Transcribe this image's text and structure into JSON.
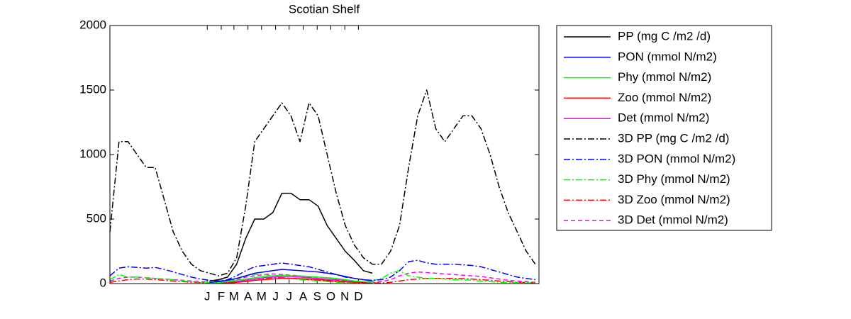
{
  "chart_data": {
    "type": "line",
    "title": "Scotian Shelf",
    "xlim": [
      -215,
      733
    ],
    "xticks": [
      {
        "value": 0,
        "label": "J"
      },
      {
        "value": 31,
        "label": "F"
      },
      {
        "value": 59,
        "label": "M"
      },
      {
        "value": 90,
        "label": "A"
      },
      {
        "value": 120,
        "label": "M"
      },
      {
        "value": 151,
        "label": "J"
      },
      {
        "value": 181,
        "label": "J"
      },
      {
        "value": 212,
        "label": "A"
      },
      {
        "value": 243,
        "label": "S"
      },
      {
        "value": 273,
        "label": "O"
      },
      {
        "value": 304,
        "label": "N"
      },
      {
        "value": 334,
        "label": "D"
      }
    ],
    "ylim": [
      0,
      2000
    ],
    "yticks": [
      0,
      500,
      1000,
      1500,
      2000
    ],
    "grid": false,
    "legend": "outside-right",
    "x": [
      -215,
      -195,
      -175,
      -155,
      -135,
      -115,
      -95,
      -75,
      -55,
      -35,
      -15,
      5,
      25,
      45,
      65,
      85,
      105,
      125,
      145,
      165,
      185,
      205,
      225,
      245,
      265,
      285,
      305,
      325,
      345,
      365,
      385,
      405,
      425,
      445,
      465,
      485,
      505,
      525,
      545,
      565,
      585,
      605,
      625,
      645,
      665,
      685,
      705,
      725
    ],
    "series": [
      {
        "name": "PP (mg C /m2 /d)",
        "color": "#000000",
        "linestyle": "solid",
        "values": [
          null,
          null,
          null,
          null,
          null,
          null,
          null,
          null,
          null,
          null,
          null,
          20,
          30,
          50,
          150,
          350,
          500,
          500,
          550,
          700,
          700,
          650,
          650,
          600,
          450,
          350,
          250,
          180,
          100,
          80,
          null,
          null,
          null,
          null,
          null,
          null,
          null,
          null,
          null,
          null,
          null,
          null,
          null,
          null,
          null,
          null,
          null,
          null
        ]
      },
      {
        "name": "PON (mmol N/m2)",
        "color": "#0000ff",
        "linestyle": "solid",
        "values": [
          null,
          null,
          null,
          null,
          null,
          null,
          null,
          null,
          null,
          null,
          null,
          10,
          15,
          25,
          40,
          60,
          80,
          90,
          100,
          110,
          105,
          100,
          95,
          90,
          80,
          70,
          55,
          40,
          30,
          20,
          null,
          null,
          null,
          null,
          null,
          null,
          null,
          null,
          null,
          null,
          null,
          null,
          null,
          null,
          null,
          null,
          null,
          null
        ]
      },
      {
        "name": "Phy (mmol N/m2)",
        "color": "#00ff00",
        "linestyle": "solid",
        "values": [
          null,
          null,
          null,
          null,
          null,
          null,
          null,
          null,
          null,
          null,
          null,
          5,
          8,
          15,
          25,
          35,
          45,
          55,
          60,
          65,
          60,
          60,
          55,
          50,
          45,
          40,
          30,
          20,
          15,
          10,
          null,
          null,
          null,
          null,
          null,
          null,
          null,
          null,
          null,
          null,
          null,
          null,
          null,
          null,
          null,
          null,
          null,
          null
        ]
      },
      {
        "name": "Zoo (mmol N/m2)",
        "color": "#ff0000",
        "linestyle": "solid",
        "values": [
          null,
          null,
          null,
          null,
          null,
          null,
          null,
          null,
          null,
          null,
          null,
          2,
          3,
          5,
          10,
          15,
          25,
          30,
          35,
          40,
          40,
          38,
          35,
          30,
          25,
          20,
          15,
          10,
          8,
          5,
          null,
          null,
          null,
          null,
          null,
          null,
          null,
          null,
          null,
          null,
          null,
          null,
          null,
          null,
          null,
          null,
          null,
          null
        ]
      },
      {
        "name": "Det (mmol N/m2)",
        "color": "#ff00ff",
        "linestyle": "solid",
        "values": [
          null,
          null,
          null,
          null,
          null,
          null,
          null,
          null,
          null,
          null,
          null,
          3,
          5,
          10,
          15,
          25,
          35,
          45,
          50,
          55,
          55,
          50,
          45,
          40,
          35,
          30,
          25,
          18,
          12,
          8,
          null,
          null,
          null,
          null,
          null,
          null,
          null,
          null,
          null,
          null,
          null,
          null,
          null,
          null,
          null,
          null,
          null,
          null
        ]
      },
      {
        "name": "3D PP (mg C /m2 /d)",
        "color": "#000000",
        "linestyle": "dashdot",
        "values": [
          400,
          1100,
          1100,
          1000,
          900,
          900,
          650,
          400,
          250,
          150,
          100,
          80,
          60,
          80,
          200,
          600,
          1100,
          1200,
          1300,
          1400,
          1300,
          1100,
          1400,
          1300,
          1000,
          700,
          450,
          300,
          200,
          150,
          150,
          250,
          450,
          900,
          1300,
          1500,
          1200,
          1100,
          1200,
          1300,
          1300,
          1200,
          1000,
          750,
          550,
          400,
          250,
          150
        ]
      },
      {
        "name": "3D PON (mmol N/m2)",
        "color": "#0000ff",
        "linestyle": "dashdot",
        "values": [
          60,
          120,
          130,
          125,
          120,
          125,
          110,
          90,
          70,
          50,
          35,
          25,
          20,
          30,
          60,
          100,
          130,
          140,
          150,
          160,
          150,
          140,
          130,
          110,
          90,
          70,
          50,
          40,
          30,
          25,
          30,
          50,
          100,
          170,
          180,
          160,
          150,
          150,
          150,
          145,
          140,
          130,
          110,
          90,
          70,
          50,
          40,
          30
        ]
      },
      {
        "name": "3D Phy (mmol N/m2)",
        "color": "#00ff00",
        "linestyle": "dashdot",
        "values": [
          30,
          70,
          50,
          50,
          45,
          40,
          35,
          30,
          20,
          15,
          10,
          8,
          10,
          20,
          40,
          60,
          70,
          70,
          60,
          50,
          40,
          30,
          25,
          20,
          15,
          10,
          8,
          8,
          10,
          20,
          40,
          80,
          100,
          60,
          50,
          40,
          40,
          35,
          30,
          30,
          25,
          20,
          15,
          10,
          8,
          8,
          5,
          5
        ]
      },
      {
        "name": "3D Zoo (mmol N/m2)",
        "color": "#ff0000",
        "linestyle": "dashdot",
        "values": [
          10,
          20,
          30,
          35,
          35,
          30,
          25,
          20,
          15,
          10,
          8,
          5,
          5,
          8,
          15,
          25,
          35,
          40,
          45,
          45,
          40,
          35,
          30,
          25,
          20,
          15,
          10,
          8,
          5,
          5,
          5,
          10,
          20,
          30,
          35,
          40,
          40,
          40,
          40,
          38,
          35,
          30,
          25,
          20,
          15,
          10,
          8,
          5
        ]
      },
      {
        "name": "3D Det (mmol N/m2)",
        "color": "#ff00ff",
        "linestyle": "dashed",
        "values": [
          20,
          40,
          50,
          50,
          45,
          40,
          35,
          30,
          25,
          20,
          15,
          10,
          10,
          15,
          30,
          50,
          60,
          70,
          75,
          70,
          65,
          60,
          50,
          40,
          30,
          25,
          20,
          15,
          10,
          10,
          15,
          30,
          60,
          80,
          90,
          85,
          80,
          75,
          70,
          65,
          60,
          55,
          45,
          35,
          25,
          20,
          15,
          10
        ]
      }
    ]
  }
}
